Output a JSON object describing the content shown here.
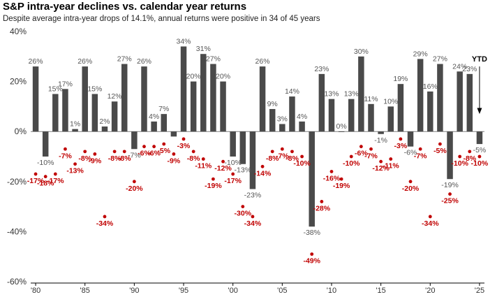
{
  "title": "S&P intra-year declines vs. calendar year returns",
  "subtitle": "Despite average intra-year drops of 14.1%, annual returns were positive in 34 of 45 years",
  "chart_data": {
    "type": "bar",
    "title": "S&P intra-year declines vs. calendar year returns",
    "subtitle": "Despite average intra-year drops of 14.1%, annual returns were positive in 34 of 45 years",
    "years": [
      1980,
      1981,
      1982,
      1983,
      1984,
      1985,
      1986,
      1987,
      1988,
      1989,
      1990,
      1991,
      1992,
      1993,
      1994,
      1995,
      1996,
      1997,
      1998,
      1999,
      2000,
      2001,
      2002,
      2003,
      2004,
      2005,
      2006,
      2007,
      2008,
      2009,
      2010,
      2011,
      2012,
      2013,
      2014,
      2015,
      2016,
      2017,
      2018,
      2019,
      2020,
      2021,
      2022,
      2023,
      2024,
      2025
    ],
    "series": [
      {
        "name": "",
        "kind": "bar",
        "color": "#4a4a4a",
        "values": [
          26,
          -10,
          15,
          17,
          1,
          26,
          15,
          2,
          12,
          27,
          -7,
          26,
          4,
          7,
          -2,
          34,
          20,
          31,
          27,
          20,
          -10,
          -13,
          -23,
          26,
          9,
          3,
          14,
          4,
          -38,
          23,
          13,
          0,
          13,
          30,
          11,
          -1,
          10,
          19,
          -6,
          29,
          16,
          27,
          -19,
          24,
          23,
          -5
        ]
      },
      {
        "name": "",
        "kind": "point",
        "color": "#c00000",
        "values": [
          -17,
          -18,
          -17,
          -7,
          -13,
          -8,
          -9,
          -34,
          -8,
          -8,
          -20,
          -6,
          -6,
          -5,
          -9,
          -3,
          -8,
          -11,
          -19,
          -12,
          -17,
          -30,
          -34,
          -14,
          -8,
          -7,
          -8,
          -10,
          -49,
          -28,
          -16,
          -19,
          -10,
          -6,
          -7,
          -12,
          -11,
          -3,
          -20,
          -7,
          -34,
          -5,
          -25,
          -10,
          -8,
          -10
        ]
      }
    ],
    "bar_labels": [
      "26%",
      "-10%",
      "15%",
      "17%",
      "1%",
      "26%",
      "15%",
      "2%",
      "12%",
      "27%",
      "-7%",
      "26%",
      "4%",
      "7%",
      "",
      "34%",
      "20%",
      "31%",
      "27%",
      "20%",
      "-10%",
      "-13%",
      "-23%",
      "26%",
      "9%",
      "3%",
      "14%",
      "4%",
      "-38%",
      "23%",
      "13%",
      "0%",
      "13%",
      "30%",
      "11%",
      "-1%",
      "10%",
      "19%",
      "-6%",
      "29%",
      "16%",
      "27%",
      "-19%",
      "24%",
      "23%",
      "-5%"
    ],
    "drop_labels": [
      "-17%",
      "-18%",
      "-17%",
      "-7%",
      "-13%",
      "-8%",
      "-9%",
      "-34%",
      "-8%",
      "-8%",
      "-20%",
      "-6%",
      "-6%",
      "-5%",
      "-9%",
      "-3%",
      "-8%",
      "-11%",
      "-19%",
      "-12%",
      "-17%",
      "-30%",
      "-34%",
      "-14%",
      "-8%",
      "-7%",
      "-8%",
      "-10%",
      "-49%",
      "-28%",
      "-16%",
      "-19%",
      "-10%",
      "-6%",
      "-7%",
      "-12%",
      "-11%",
      "-3%",
      "-20%",
      "-7%",
      "-34%",
      "-5%",
      "-25%",
      "-10%",
      "-8%",
      "-10%"
    ],
    "x_ticks": [
      {
        "year": 1980,
        "label": "'80"
      },
      {
        "year": 1985,
        "label": "'85"
      },
      {
        "year": 1990,
        "label": "'90"
      },
      {
        "year": 1995,
        "label": "'95"
      },
      {
        "year": 2000,
        "label": "'00"
      },
      {
        "year": 2005,
        "label": "'05"
      },
      {
        "year": 2010,
        "label": "'10"
      },
      {
        "year": 2015,
        "label": "'15"
      },
      {
        "year": 2020,
        "label": "'20"
      },
      {
        "year": 2025,
        "label": "'25"
      }
    ],
    "y_ticks": [
      {
        "value": 40,
        "label": "40%"
      },
      {
        "value": 20,
        "label": "20%"
      },
      {
        "value": 0,
        "label": "0%"
      },
      {
        "value": -20,
        "label": "-20%"
      },
      {
        "value": -40,
        "label": "-40%"
      },
      {
        "value": -60,
        "label": "-60%"
      }
    ],
    "ylim": [
      -60,
      40
    ],
    "annotation": {
      "text": "YTD",
      "year": 2025
    },
    "grid": false,
    "legend": "none"
  }
}
